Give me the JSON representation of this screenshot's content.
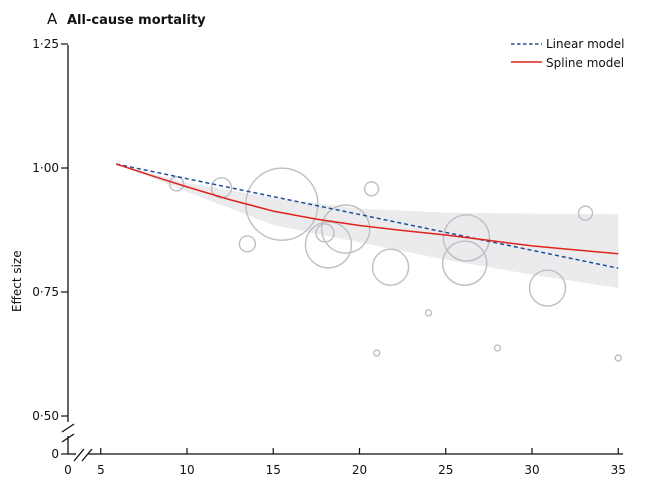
{
  "panel_letter": "A",
  "chart_data": {
    "type": "scatter",
    "title": "All-cause mortality",
    "xlabel": "",
    "ylabel": "Effect size",
    "xlim": [
      0,
      35
    ],
    "ylim": [
      0,
      1.25
    ],
    "axis_breaks": {
      "x": [
        0,
        5
      ],
      "y": [
        0,
        0.5
      ]
    },
    "x_ticks": [
      0,
      5,
      10,
      15,
      20,
      25,
      30,
      35
    ],
    "x_tick_labels": [
      "0",
      "5",
      "10",
      "15",
      "20",
      "25",
      "30",
      "35"
    ],
    "y_ticks": [
      0,
      0.5,
      0.75,
      1.0,
      1.25
    ],
    "y_tick_labels": [
      "0",
      "0·50",
      "0·75",
      "1·00",
      "1·25"
    ],
    "grid": false,
    "legend": {
      "placement": "top-right",
      "entries": [
        {
          "label": "Linear model",
          "style": "dashed",
          "color": "#1f4e9a"
        },
        {
          "label": "Spline model",
          "style": "solid",
          "color": "#e0231c"
        }
      ]
    },
    "series": [
      {
        "name": "Linear model",
        "type": "line",
        "color": "#1f4e9a",
        "x": [
          5.9,
          35
        ],
        "y": [
          1.008,
          0.798
        ]
      },
      {
        "name": "Spline model",
        "type": "line",
        "color": "#e0231c",
        "x": [
          5.9,
          8,
          10,
          12.5,
          15,
          17.5,
          20,
          22.5,
          25,
          27.5,
          30,
          32.5,
          35
        ],
        "y": [
          1.008,
          0.984,
          0.962,
          0.936,
          0.913,
          0.897,
          0.884,
          0.874,
          0.865,
          0.854,
          0.843,
          0.835,
          0.827
        ]
      },
      {
        "name": "Confidence band",
        "type": "area",
        "color": "#ebebed",
        "x": [
          5.9,
          10,
          15,
          20,
          25,
          30,
          35
        ],
        "upper": [
          1.008,
          0.97,
          0.94,
          0.918,
          0.91,
          0.908,
          0.907
        ],
        "lower": [
          1.008,
          0.952,
          0.885,
          0.85,
          0.815,
          0.785,
          0.758
        ]
      },
      {
        "name": "Studies",
        "type": "bubble",
        "color": "#bdbfc3",
        "points": [
          {
            "x": 9.4,
            "y": 0.968,
            "size": 7
          },
          {
            "x": 12.0,
            "y": 0.96,
            "size": 10
          },
          {
            "x": 13.5,
            "y": 0.847,
            "size": 8
          },
          {
            "x": 15.5,
            "y": 0.927,
            "size": 36
          },
          {
            "x": 19.2,
            "y": 0.877,
            "size": 24
          },
          {
            "x": 18.2,
            "y": 0.845,
            "size": 23
          },
          {
            "x": 18.0,
            "y": 0.869,
            "size": 9
          },
          {
            "x": 20.7,
            "y": 0.958,
            "size": 7
          },
          {
            "x": 21.8,
            "y": 0.8,
            "size": 18
          },
          {
            "x": 26.2,
            "y": 0.859,
            "size": 23
          },
          {
            "x": 26.1,
            "y": 0.808,
            "size": 22
          },
          {
            "x": 30.9,
            "y": 0.758,
            "size": 18
          },
          {
            "x": 33.1,
            "y": 0.909,
            "size": 7
          },
          {
            "x": 24.0,
            "y": 0.708,
            "size": 3
          },
          {
            "x": 21.0,
            "y": 0.627,
            "size": 3
          },
          {
            "x": 28.0,
            "y": 0.637,
            "size": 3
          },
          {
            "x": 35.0,
            "y": 0.617,
            "size": 3
          }
        ]
      }
    ]
  }
}
